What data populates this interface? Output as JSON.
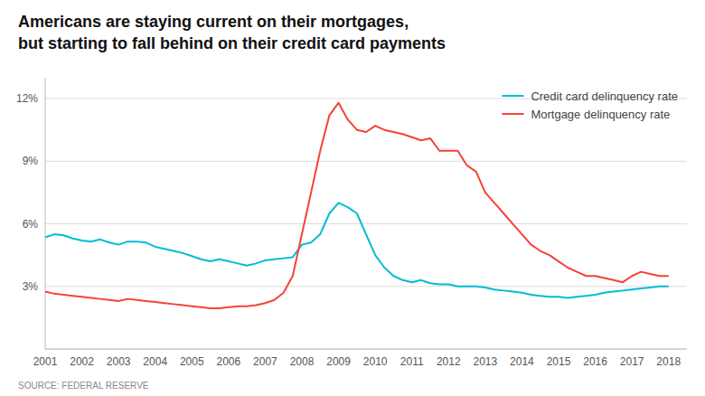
{
  "chart_data": {
    "type": "line",
    "title": "Americans are staying current on their mortgages,",
    "subtitle": "but starting to fall behind on their credit card payments",
    "source": "SOURCE: FEDERAL RESERVE",
    "x": [
      2001,
      2001.25,
      2001.5,
      2001.75,
      2002,
      2002.25,
      2002.5,
      2002.75,
      2003,
      2003.25,
      2003.5,
      2003.75,
      2004,
      2004.25,
      2004.5,
      2004.75,
      2005,
      2005.25,
      2005.5,
      2005.75,
      2006,
      2006.25,
      2006.5,
      2006.75,
      2007,
      2007.25,
      2007.5,
      2007.75,
      2008,
      2008.25,
      2008.5,
      2008.75,
      2009,
      2009.25,
      2009.5,
      2009.75,
      2010,
      2010.25,
      2010.5,
      2010.75,
      2011,
      2011.25,
      2011.5,
      2011.75,
      2012,
      2012.25,
      2012.5,
      2012.75,
      2013,
      2013.25,
      2013.5,
      2013.75,
      2014,
      2014.25,
      2014.5,
      2014.75,
      2015,
      2015.25,
      2015.5,
      2015.75,
      2016,
      2016.25,
      2016.5,
      2016.75,
      2017,
      2017.25,
      2017.5,
      2017.75,
      2018
    ],
    "series": [
      {
        "name": "Credit card delinquency rate",
        "color": "#00bcd4",
        "values": [
          5.35,
          5.5,
          5.45,
          5.3,
          5.2,
          5.15,
          5.25,
          5.1,
          5.0,
          5.15,
          5.15,
          5.1,
          4.9,
          4.8,
          4.7,
          4.6,
          4.45,
          4.3,
          4.2,
          4.3,
          4.2,
          4.1,
          4.0,
          4.1,
          4.25,
          4.3,
          4.35,
          4.4,
          5.0,
          5.1,
          5.5,
          6.5,
          7.0,
          6.8,
          6.5,
          5.5,
          4.5,
          3.9,
          3.5,
          3.3,
          3.2,
          3.3,
          3.15,
          3.1,
          3.1,
          3.0,
          3.0,
          3.0,
          2.95,
          2.85,
          2.8,
          2.75,
          2.7,
          2.6,
          2.55,
          2.5,
          2.5,
          2.45,
          2.5,
          2.55,
          2.6,
          2.7,
          2.75,
          2.8,
          2.85,
          2.9,
          2.95,
          3.0,
          3.0
        ]
      },
      {
        "name": "Mortgage delinquency rate",
        "color": "#f44336",
        "values": [
          2.75,
          2.65,
          2.6,
          2.55,
          2.5,
          2.45,
          2.4,
          2.35,
          2.3,
          2.4,
          2.35,
          2.3,
          2.25,
          2.2,
          2.15,
          2.1,
          2.05,
          2.0,
          1.95,
          1.95,
          2.0,
          2.05,
          2.05,
          2.1,
          2.2,
          2.35,
          2.7,
          3.5,
          5.5,
          7.5,
          9.5,
          11.2,
          11.8,
          11.0,
          10.5,
          10.4,
          10.7,
          10.5,
          10.4,
          10.3,
          10.15,
          10.0,
          10.1,
          9.5,
          9.5,
          9.5,
          8.8,
          8.5,
          7.5,
          7.0,
          6.5,
          6.0,
          5.5,
          5.0,
          4.7,
          4.5,
          4.2,
          3.9,
          3.7,
          3.5,
          3.5,
          3.4,
          3.3,
          3.2,
          3.5,
          3.7,
          3.6,
          3.5,
          3.5
        ]
      }
    ],
    "xlim": [
      2001,
      2018.5
    ],
    "xticks": [
      2001,
      2002,
      2003,
      2004,
      2005,
      2006,
      2007,
      2008,
      2009,
      2010,
      2011,
      2012,
      2013,
      2014,
      2015,
      2016,
      2017,
      2018
    ],
    "ylim": [
      0,
      13
    ],
    "yticks": [
      {
        "value": 3,
        "label": "3%"
      },
      {
        "value": 6,
        "label": "6%"
      },
      {
        "value": 9,
        "label": "9%"
      },
      {
        "value": 12,
        "label": "12%"
      }
    ],
    "grid": true,
    "legend": "upper right"
  }
}
